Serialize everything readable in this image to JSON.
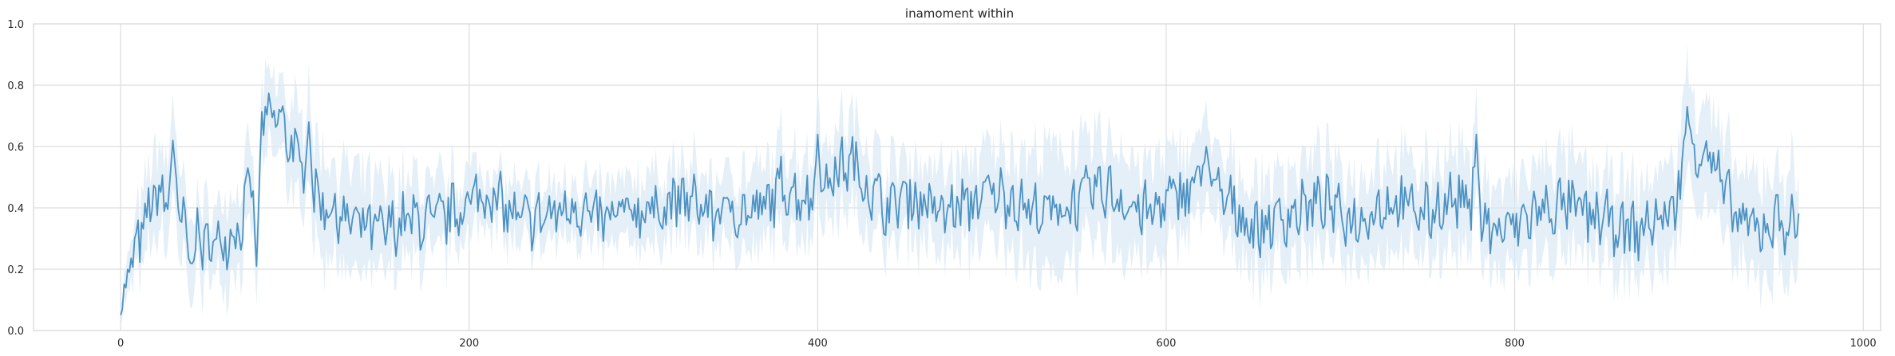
{
  "chart_data": {
    "type": "line",
    "title": "inamoment within",
    "xlabel": "",
    "ylabel": "",
    "xlim": [
      -50,
      1010
    ],
    "ylim": [
      0.0,
      1.0
    ],
    "grid": true,
    "x_ticks": [
      "0",
      "200",
      "400",
      "600",
      "800",
      "1000"
    ],
    "y_ticks": [
      "0.0",
      "0.2",
      "0.4",
      "0.6",
      "0.8",
      "1.0"
    ],
    "x_tick_values": [
      0,
      200,
      400,
      600,
      800,
      1000
    ],
    "y_tick_values": [
      0.0,
      0.2,
      0.4,
      0.6,
      0.8,
      1.0
    ],
    "colors": {
      "line": "#4c92c3",
      "band": "#dbe9f6",
      "grid": "#d6d6d6",
      "axis": "#cccccc"
    },
    "series": [
      {
        "x_start": 0,
        "x_step": 10,
        "mean": [
          0.1,
          0.28,
          0.45,
          0.4,
          0.3,
          0.28,
          0.3,
          0.35,
          0.66,
          0.7,
          0.58,
          0.45,
          0.4,
          0.36,
          0.34,
          0.32,
          0.35,
          0.36,
          0.35,
          0.38,
          0.42,
          0.45,
          0.4,
          0.35,
          0.37,
          0.38,
          0.42,
          0.36,
          0.36,
          0.38,
          0.4,
          0.4,
          0.42,
          0.42,
          0.38,
          0.4,
          0.38,
          0.4,
          0.48,
          0.44,
          0.42,
          0.52,
          0.55,
          0.46,
          0.4,
          0.44,
          0.42,
          0.38,
          0.4,
          0.42,
          0.45,
          0.44,
          0.4,
          0.38,
          0.4,
          0.42,
          0.46,
          0.45,
          0.4,
          0.38,
          0.42,
          0.45,
          0.5,
          0.44,
          0.4,
          0.33,
          0.35,
          0.38,
          0.4,
          0.42,
          0.38,
          0.36,
          0.4,
          0.42,
          0.4,
          0.38,
          0.42,
          0.43,
          0.35,
          0.32,
          0.34,
          0.38,
          0.4,
          0.41,
          0.38,
          0.36,
          0.34,
          0.32,
          0.36,
          0.38,
          0.58,
          0.6,
          0.45,
          0.35,
          0.33,
          0.36,
          0.35
        ],
        "spikes": [
          [
            30,
            0.62
          ],
          [
            80,
            0.73
          ],
          [
            108,
            0.68
          ],
          [
            400,
            0.64
          ],
          [
            623,
            0.6
          ],
          [
            778,
            0.64
          ],
          [
            899,
            0.73
          ],
          [
            0,
            0.05
          ],
          [
            78,
            0.21
          ],
          [
            40,
            0.22
          ]
        ],
        "band_halfwidth": [
          0.03,
          0.1,
          0.15,
          0.15,
          0.12,
          0.12,
          0.12,
          0.12,
          0.12,
          0.12,
          0.14,
          0.16,
          0.16,
          0.16,
          0.15,
          0.15,
          0.14,
          0.13,
          0.12,
          0.11,
          0.1,
          0.09,
          0.09,
          0.09,
          0.09,
          0.09,
          0.09,
          0.1,
          0.1,
          0.1,
          0.11,
          0.11,
          0.11,
          0.11,
          0.11,
          0.12,
          0.12,
          0.12,
          0.13,
          0.13,
          0.14,
          0.14,
          0.14,
          0.14,
          0.13,
          0.13,
          0.13,
          0.14,
          0.14,
          0.14,
          0.14,
          0.15,
          0.17,
          0.19,
          0.19,
          0.18,
          0.17,
          0.16,
          0.16,
          0.15,
          0.15,
          0.14,
          0.13,
          0.12,
          0.13,
          0.14,
          0.15,
          0.15,
          0.15,
          0.14,
          0.14,
          0.14,
          0.15,
          0.15,
          0.15,
          0.15,
          0.15,
          0.15,
          0.14,
          0.14,
          0.13,
          0.14,
          0.15,
          0.15,
          0.15,
          0.14,
          0.14,
          0.14,
          0.15,
          0.16,
          0.16,
          0.16,
          0.16,
          0.15,
          0.15,
          0.16,
          0.17
        ]
      }
    ]
  }
}
